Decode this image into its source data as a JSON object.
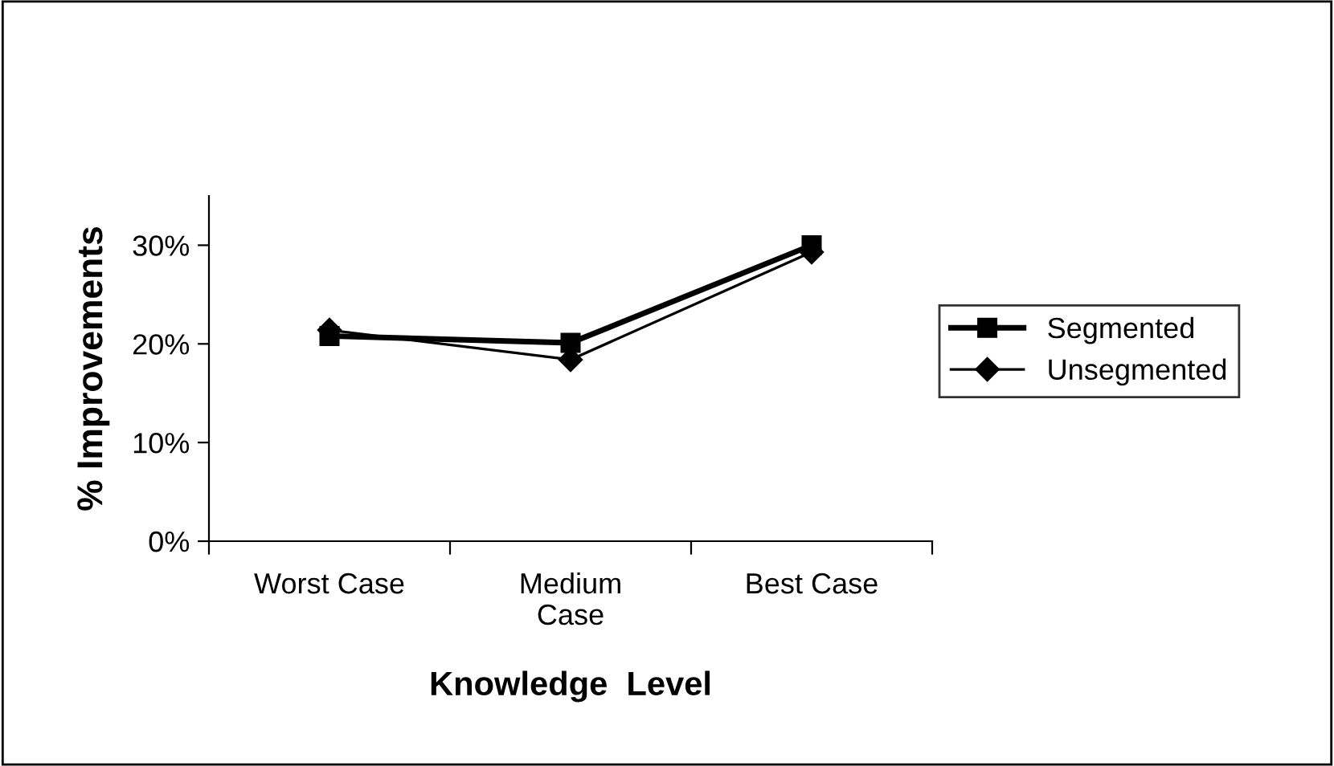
{
  "chart_data": {
    "type": "line",
    "xlabel": "Knowledge  Level",
    "ylabel": "% Improvements",
    "categories": [
      "Worst Case",
      "Medium\nCase",
      "Best Case"
    ],
    "series": [
      {
        "name": "Segmented",
        "color": "#000000",
        "values": [
          20.8,
          20.1,
          30.0
        ],
        "marker": "square"
      },
      {
        "name": "Unsegmented",
        "color": "#000000",
        "values": [
          21.4,
          18.4,
          29.3
        ],
        "marker": "diamond"
      }
    ],
    "ylim": [
      0,
      35
    ],
    "yticks": [
      {
        "value": 0,
        "label": "0%"
      },
      {
        "value": 10,
        "label": "10%"
      },
      {
        "value": 20,
        "label": "20%"
      },
      {
        "value": 30,
        "label": "30%"
      }
    ],
    "grid": false,
    "legend": "right"
  }
}
